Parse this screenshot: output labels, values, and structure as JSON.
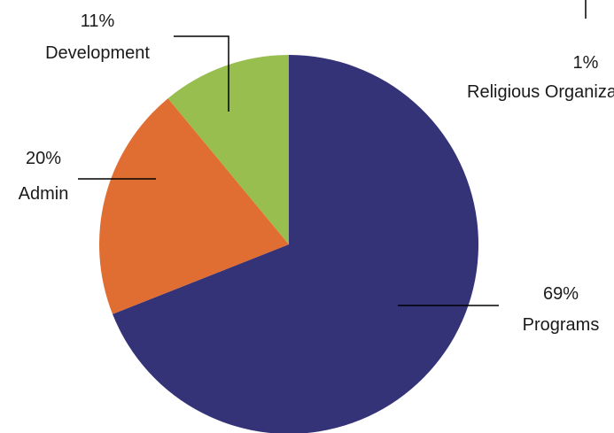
{
  "chart_data": {
    "type": "pie",
    "slices": [
      {
        "label": "Programs",
        "value": 69,
        "value_label": "69%",
        "color": "#343378"
      },
      {
        "label": "Admin",
        "value": 20,
        "value_label": "20%",
        "color": "#e06e32"
      },
      {
        "label": "Development",
        "value": 11,
        "value_label": "11%",
        "color": "#98be4f"
      },
      {
        "label": "Religious Organizations",
        "value": 1,
        "value_label": "1%",
        "color": "#4f7fbf"
      }
    ],
    "title": "",
    "legend": "none",
    "labels": "outside with leader lines"
  }
}
